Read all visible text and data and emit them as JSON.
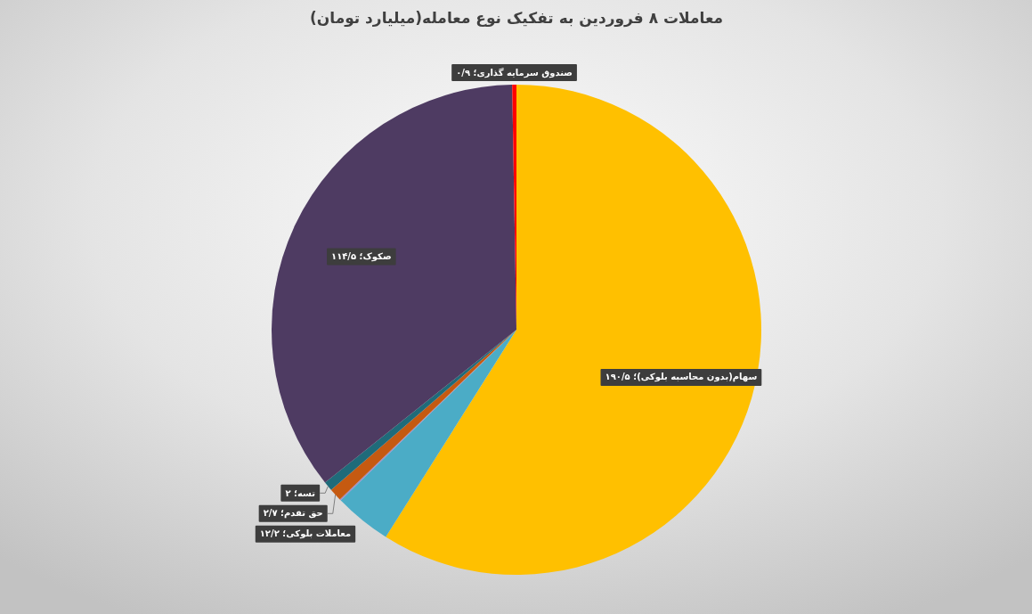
{
  "chart_data": {
    "type": "pie",
    "title": "معاملات ۸ فروردین به تفکیک نوع معامله(میلیارد تومان)",
    "categories": [
      "سهام(بدون محاسبه بلوکی)؛",
      "معاملات بلوکی؛",
      null,
      "حق تقدم؛",
      "تسه؛",
      "صکوک؛",
      "صندوق سرمایه گذاری؛"
    ],
    "values": [
      190.5,
      12.2,
      0.3,
      2.7,
      2,
      114.5,
      0.9
    ],
    "colors": [
      "#ffc000",
      "#4bacc6",
      "#9c8cc8",
      "#c55a11",
      "#1f6b7a",
      "#4e3b62",
      "#ff0000"
    ],
    "value_labels": [
      "۱۹۰/۵",
      "۱۲/۲",
      null,
      "۲/۷",
      "۲",
      "۱۱۴/۵",
      "۰/۹"
    ]
  }
}
